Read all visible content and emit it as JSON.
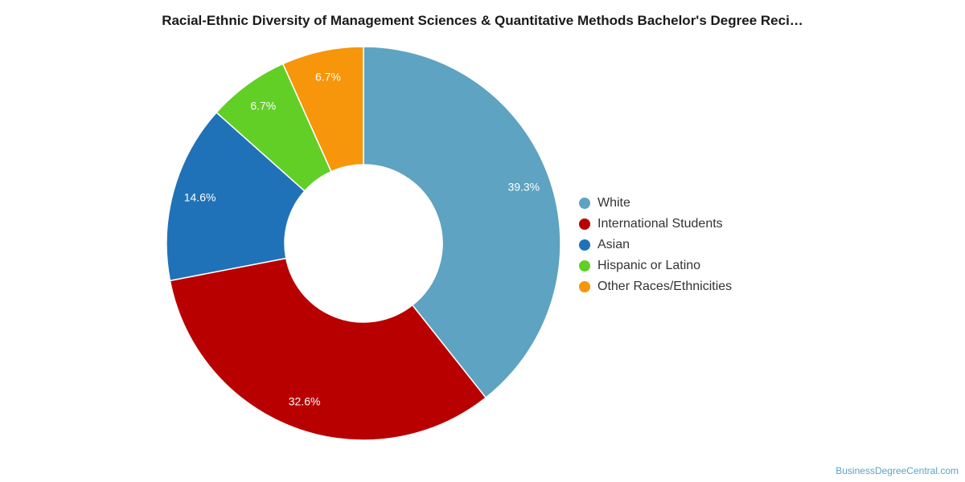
{
  "chart_data": {
    "type": "pie",
    "title": "Racial-Ethnic Diversity of Management Sciences & Quantitative Methods Bachelor's Degree Reci…",
    "categories": [
      "White",
      "International Students",
      "Asian",
      "Hispanic or Latino",
      "Other Races/Ethnicities"
    ],
    "values": [
      39.3,
      32.6,
      14.6,
      6.7,
      6.7
    ],
    "value_labels": [
      "39.3%",
      "32.6%",
      "14.6%",
      "6.7%",
      "6.7%"
    ],
    "colors": [
      "#5ea3c1",
      "#b90000",
      "#1f72b8",
      "#62cf27",
      "#f7960a"
    ],
    "donut": true,
    "legend_position": "right"
  },
  "watermark": "BusinessDegreeCentral.com"
}
